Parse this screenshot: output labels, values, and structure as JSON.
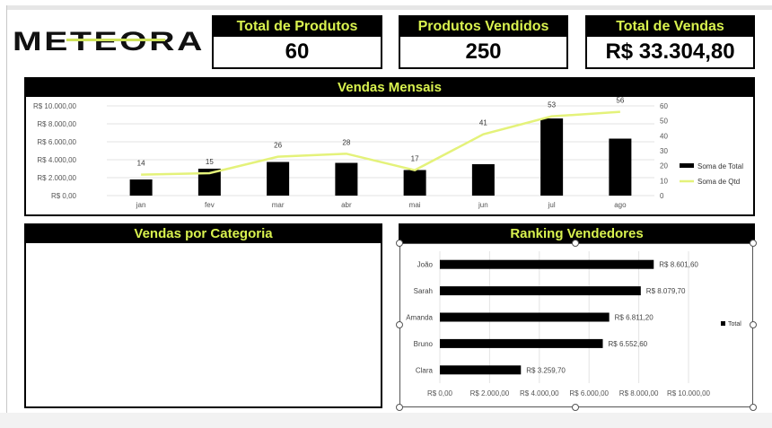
{
  "logo": {
    "text": "METEORA"
  },
  "kpis": [
    {
      "title": "Total de Produtos",
      "value": "60"
    },
    {
      "title": "Produtos Vendidos",
      "value": "250"
    },
    {
      "title": "Total de Vendas",
      "value": "R$ 33.304,80"
    }
  ],
  "panels": {
    "monthly": "Vendas Mensais",
    "category": "Vendas por Categoria",
    "ranking": "Ranking Vendedores"
  },
  "colors": {
    "accent": "#d9f24f",
    "bar": "#000000",
    "line": "#e4f27a"
  },
  "chart_data": [
    {
      "type": "bar+line",
      "title": "Vendas Mensais",
      "categories": [
        "jan",
        "fev",
        "mar",
        "abr",
        "mai",
        "jun",
        "jul",
        "ago"
      ],
      "series": [
        {
          "name": "Soma de Total",
          "axis": "left",
          "values": [
            1800,
            3000,
            3750,
            3650,
            2850,
            3500,
            8600,
            6350
          ]
        },
        {
          "name": "Soma de Qtd",
          "axis": "right",
          "values": [
            14,
            15,
            26,
            28,
            17,
            41,
            53,
            56
          ]
        }
      ],
      "yTicksLeft": [
        "R$ 0,00",
        "R$ 2.000,00",
        "R$ 4.000,00",
        "R$ 6.000,00",
        "R$ 8.000,00",
        "R$ 10.000,00"
      ],
      "yTicksRight": [
        "0",
        "10",
        "20",
        "30",
        "40",
        "50",
        "60"
      ],
      "ylimLeft": [
        0,
        10000
      ],
      "ylimRight": [
        0,
        60
      ],
      "legend": "right"
    },
    {
      "type": "bar",
      "orientation": "horizontal",
      "title": "Ranking Vendedores",
      "categories": [
        "João",
        "Sarah",
        "Amanda",
        "Bruno",
        "Clara"
      ],
      "series": [
        {
          "name": "Total",
          "values": [
            8601.6,
            8079.7,
            6811.2,
            6552.6,
            3259.7
          ]
        }
      ],
      "valueLabels": [
        "R$ 8.601,60",
        "R$ 8.079,70",
        "R$ 6.811,20",
        "R$ 6.552,60",
        "R$ 3.259,70"
      ],
      "xTicks": [
        "R$ 0,00",
        "R$ 2.000,00",
        "R$ 4.000,00",
        "R$ 6.000,00",
        "R$ 8.000,00",
        "R$ 10.000,00"
      ],
      "xlim": [
        0,
        10000
      ],
      "legend": "right"
    }
  ]
}
